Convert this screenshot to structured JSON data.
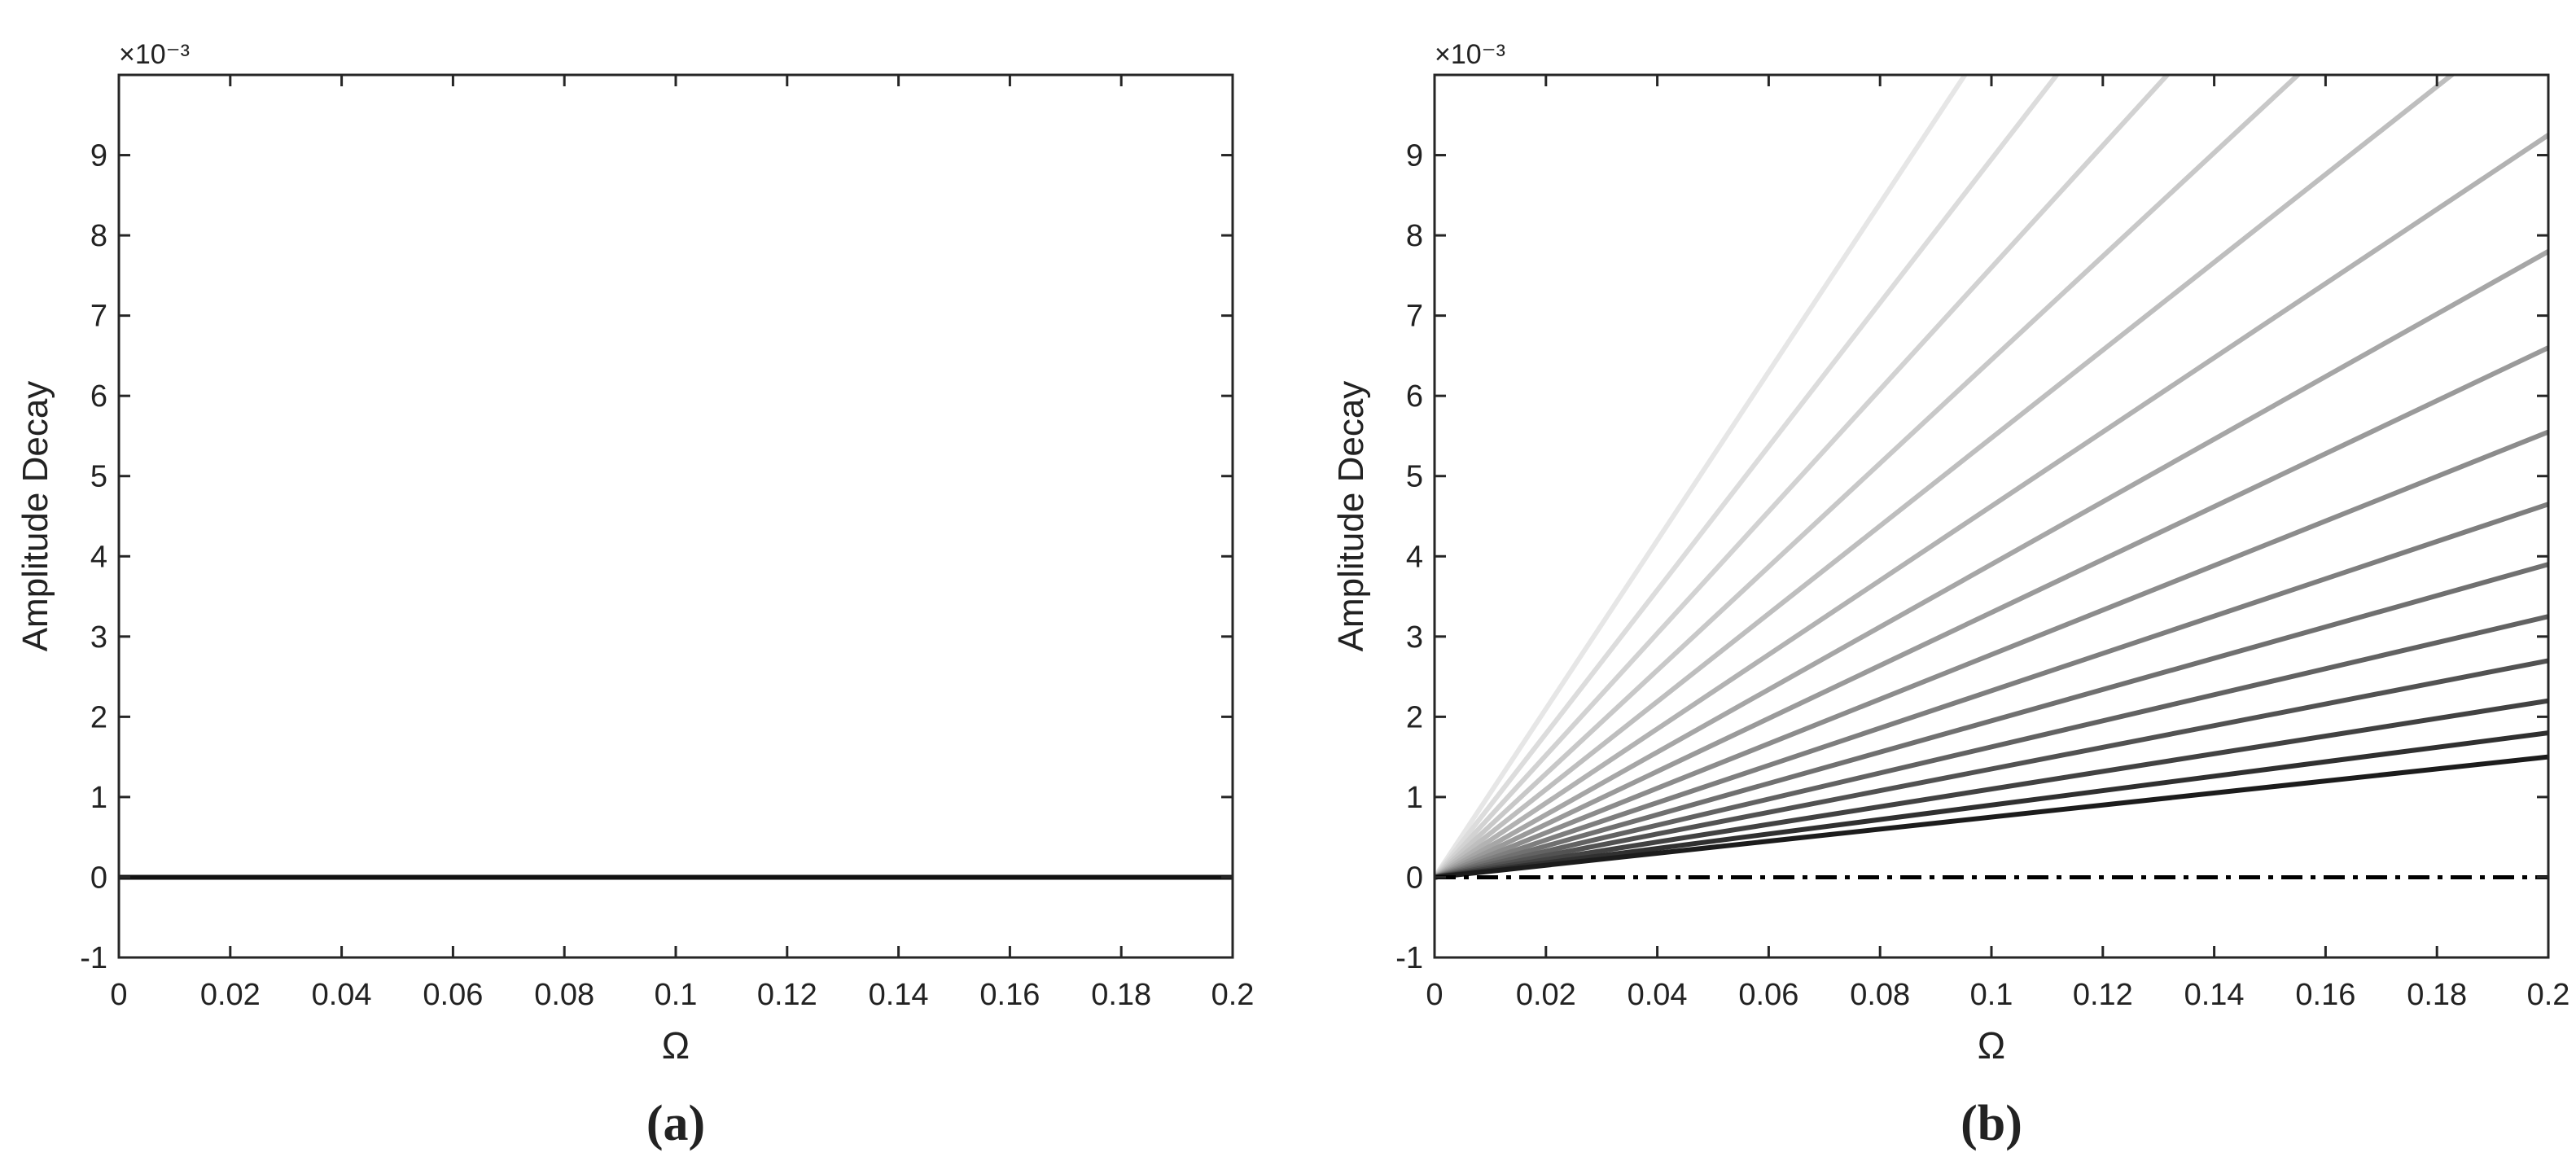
{
  "chart_data": [
    {
      "type": "line",
      "panel_label": "(a)",
      "xlabel": "Ω",
      "ylabel": "Amplitude Decay",
      "y_multiplier": "×10⁻³",
      "xlim": [
        0,
        0.2
      ],
      "ylim": [
        -1,
        10
      ],
      "xticks": [
        0,
        0.02,
        0.04,
        0.06,
        0.08,
        0.1,
        0.12,
        0.14,
        0.16,
        0.18,
        0.2
      ],
      "xtick_labels": [
        "0",
        "0.02",
        "0.04",
        "0.06",
        "0.08",
        "0.1",
        "0.12",
        "0.14",
        "0.16",
        "0.18",
        "0.2"
      ],
      "yticks": [
        -1,
        0,
        1,
        2,
        3,
        4,
        5,
        6,
        7,
        8,
        9
      ],
      "ytick_labels": [
        "-1",
        "0",
        "1",
        "2",
        "3",
        "4",
        "5",
        "6",
        "7",
        "8",
        "9"
      ],
      "grid": false,
      "series": [
        {
          "x": [
            0,
            0.2
          ],
          "values": [
            0,
            0
          ],
          "color": "#111111",
          "dash": "solid"
        }
      ]
    },
    {
      "type": "line",
      "panel_label": "(b)",
      "xlabel": "Ω",
      "ylabel": "Amplitude Decay",
      "y_multiplier": "×10⁻³",
      "xlim": [
        0,
        0.2
      ],
      "ylim": [
        -1,
        10
      ],
      "xticks": [
        0,
        0.02,
        0.04,
        0.06,
        0.08,
        0.1,
        0.12,
        0.14,
        0.16,
        0.18,
        0.2
      ],
      "xtick_labels": [
        "0",
        "0.02",
        "0.04",
        "0.06",
        "0.08",
        "0.1",
        "0.12",
        "0.14",
        "0.16",
        "0.18",
        "0.2"
      ],
      "yticks": [
        -1,
        0,
        1,
        2,
        3,
        4,
        5,
        6,
        7,
        8,
        9
      ],
      "ytick_labels": [
        "-1",
        "0",
        "1",
        "2",
        "3",
        "4",
        "5",
        "6",
        "7",
        "8",
        "9"
      ],
      "grid": false,
      "series": [
        {
          "x": [
            0,
            0.2
          ],
          "values": [
            0,
            21.0
          ],
          "color": "#e6e6e6",
          "dash": "solid"
        },
        {
          "x": [
            0,
            0.2
          ],
          "values": [
            0,
            17.9
          ],
          "color": "#dcdcdc",
          "dash": "solid"
        },
        {
          "x": [
            0,
            0.2
          ],
          "values": [
            0,
            15.2
          ],
          "color": "#d2d2d2",
          "dash": "solid"
        },
        {
          "x": [
            0,
            0.2
          ],
          "values": [
            0,
            12.9
          ],
          "color": "#c8c8c8",
          "dash": "solid"
        },
        {
          "x": [
            0,
            0.2
          ],
          "values": [
            0,
            10.95
          ],
          "color": "#bebebe",
          "dash": "solid"
        },
        {
          "x": [
            0,
            0.2
          ],
          "values": [
            0,
            9.25
          ],
          "color": "#b2b2b2",
          "dash": "solid"
        },
        {
          "x": [
            0,
            0.2
          ],
          "values": [
            0,
            7.8
          ],
          "color": "#a6a6a6",
          "dash": "solid"
        },
        {
          "x": [
            0,
            0.2
          ],
          "values": [
            0,
            6.6
          ],
          "color": "#9a9a9a",
          "dash": "solid"
        },
        {
          "x": [
            0,
            0.2
          ],
          "values": [
            0,
            5.55
          ],
          "color": "#8c8c8c",
          "dash": "solid"
        },
        {
          "x": [
            0,
            0.2
          ],
          "values": [
            0,
            4.65
          ],
          "color": "#7e7e7e",
          "dash": "solid"
        },
        {
          "x": [
            0,
            0.2
          ],
          "values": [
            0,
            3.9
          ],
          "color": "#707070",
          "dash": "solid"
        },
        {
          "x": [
            0,
            0.2
          ],
          "values": [
            0,
            3.25
          ],
          "color": "#626262",
          "dash": "solid"
        },
        {
          "x": [
            0,
            0.2
          ],
          "values": [
            0,
            2.7
          ],
          "color": "#525252",
          "dash": "solid"
        },
        {
          "x": [
            0,
            0.2
          ],
          "values": [
            0,
            2.2
          ],
          "color": "#424242",
          "dash": "solid"
        },
        {
          "x": [
            0,
            0.2
          ],
          "values": [
            0,
            1.8
          ],
          "color": "#303030",
          "dash": "solid"
        },
        {
          "x": [
            0,
            0.2
          ],
          "values": [
            0,
            1.5
          ],
          "color": "#1c1c1c",
          "dash": "solid"
        },
        {
          "x": [
            0,
            0.2
          ],
          "values": [
            0,
            0
          ],
          "color": "#000000",
          "dash": "dashdot"
        }
      ]
    }
  ]
}
